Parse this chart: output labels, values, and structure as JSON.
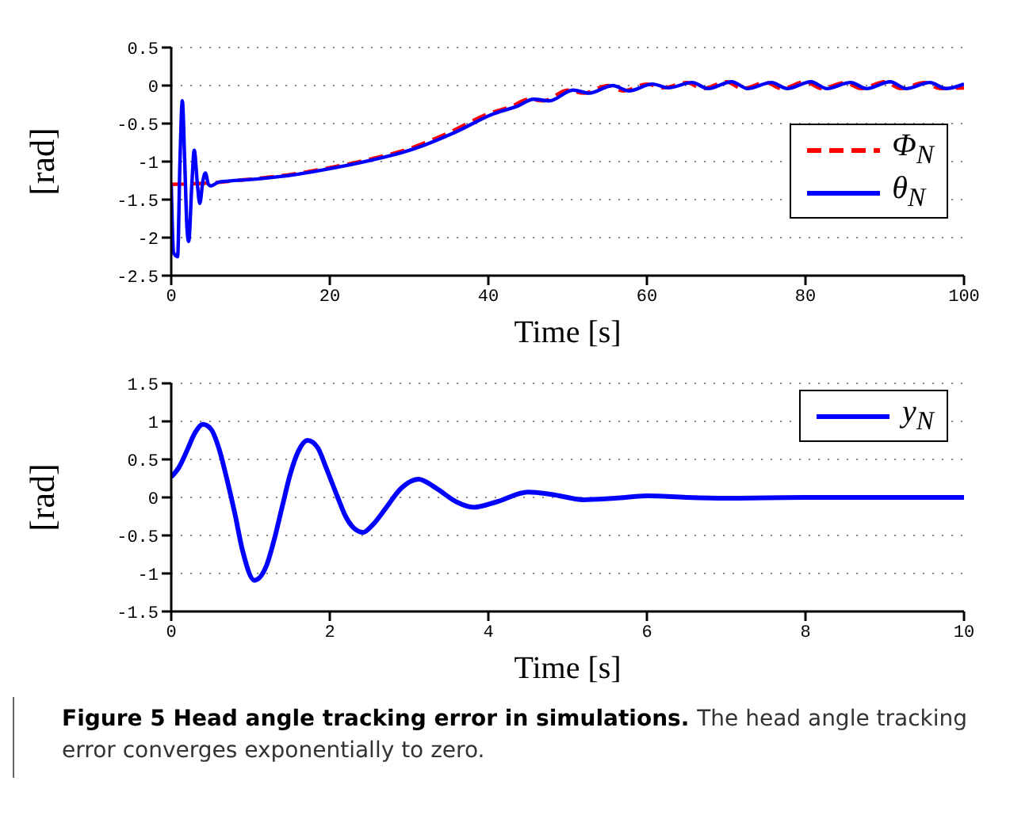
{
  "chart_data": [
    {
      "type": "line",
      "xlabel": "Time [s]",
      "ylabel": "[rad]",
      "xlim": [
        0,
        100
      ],
      "xticks": [
        0,
        20,
        40,
        60,
        80,
        100
      ],
      "ylim": [
        -2.5,
        0.5
      ],
      "yticks": [
        -2.5,
        -2,
        -1.5,
        -1,
        -0.5,
        0,
        0.5
      ],
      "grid": "y",
      "legend": "right",
      "series": [
        {
          "name": "Φ$_{N}$",
          "color": "#ff0000",
          "line_style": "dashed",
          "x": [
            0,
            5,
            10,
            15,
            20,
            25,
            30,
            35,
            40,
            43,
            45,
            47,
            50,
            52,
            55,
            57,
            60,
            62,
            65,
            67,
            70,
            72,
            75,
            77,
            80,
            82,
            85,
            87,
            90,
            92,
            95,
            97,
            100
          ],
          "values": [
            -1.3,
            -1.28,
            -1.23,
            -1.17,
            -1.08,
            -0.97,
            -0.83,
            -0.62,
            -0.37,
            -0.27,
            -0.18,
            -0.2,
            -0.06,
            -0.1,
            0,
            -0.07,
            0.02,
            -0.03,
            0.04,
            -0.04,
            0.05,
            -0.04,
            0.04,
            -0.04,
            0.05,
            -0.04,
            0.04,
            -0.04,
            0.05,
            -0.04,
            0.04,
            -0.04,
            -0.03
          ]
        },
        {
          "name": "θ$_{N}$",
          "color": "#0000ff",
          "line_style": "solid",
          "x": [
            0,
            0.3,
            0.8,
            1.1,
            1.4,
            1.7,
            2,
            2.2,
            2.6,
            2.9,
            3.3,
            3.6,
            4,
            4.3,
            4.7,
            5,
            6,
            10.7,
            15.7,
            20.7,
            25.7,
            30.7,
            35.7,
            40.7,
            43.7,
            45.7,
            47.7,
            50.7,
            52.7,
            55.7,
            57.7,
            60.7,
            62.7,
            65.7,
            67.7,
            70.7,
            72.7,
            75.7,
            77.7,
            80.7,
            82.7,
            85.7,
            87.7,
            90.7,
            92.7,
            95.7,
            97.7,
            100
          ],
          "values": [
            -1.3,
            -2.2,
            -2.25,
            -1,
            -0.2,
            -1,
            -1.9,
            -2.05,
            -1.3,
            -0.85,
            -1.3,
            -1.55,
            -1.25,
            -1.15,
            -1.3,
            -1.32,
            -1.27,
            -1.23,
            -1.17,
            -1.08,
            -0.97,
            -0.83,
            -0.62,
            -0.37,
            -0.27,
            -0.18,
            -0.2,
            -0.06,
            -0.1,
            0,
            -0.07,
            0.02,
            -0.03,
            0.04,
            -0.04,
            0.05,
            -0.04,
            0.04,
            -0.04,
            0.05,
            -0.04,
            0.04,
            -0.04,
            0.05,
            -0.04,
            0.04,
            -0.04,
            0.02
          ]
        }
      ]
    },
    {
      "type": "line",
      "xlabel": "Time [s]",
      "ylabel": "[rad]",
      "xlim": [
        0,
        10
      ],
      "xticks": [
        0,
        2,
        4,
        6,
        8,
        10
      ],
      "ylim": [
        -1.5,
        1.5
      ],
      "yticks": [
        -1.5,
        -1,
        -0.5,
        0,
        0.5,
        1,
        1.5
      ],
      "grid": "y",
      "legend": "top right",
      "annotations": [
        "Figure 5 Head angle tracking error in simulations.",
        "The head angle tracking error converges exponentially to zero."
      ],
      "series": [
        {
          "name": "y$_{N}$",
          "color": "#0000ff",
          "line_style": "solid",
          "x": [
            0,
            0.1,
            0.2,
            0.3,
            0.4,
            0.5,
            0.6,
            0.7,
            0.8,
            0.9,
            1.05,
            1.2,
            1.3,
            1.4,
            1.5,
            1.6,
            1.72,
            1.85,
            1.95,
            2.1,
            2.2,
            2.3,
            2.42,
            2.55,
            2.7,
            2.9,
            3.12,
            3.3,
            3.4,
            3.6,
            3.82,
            4.1,
            4.5,
            4.8,
            5.2,
            5.6,
            6,
            6.5,
            7,
            8,
            9,
            10
          ],
          "values": [
            0.27,
            0.4,
            0.62,
            0.85,
            0.96,
            0.9,
            0.65,
            0.25,
            -0.2,
            -0.7,
            -1.09,
            -0.9,
            -0.55,
            -0.12,
            0.3,
            0.6,
            0.75,
            0.65,
            0.4,
            0.0,
            -0.25,
            -0.4,
            -0.46,
            -0.35,
            -0.15,
            0.12,
            0.24,
            0.15,
            0.08,
            -0.06,
            -0.13,
            -0.06,
            0.07,
            0.04,
            -0.03,
            -0.01,
            0.02,
            0.0,
            -0.01,
            0.0,
            0.0,
            0.0
          ]
        }
      ]
    }
  ]
}
